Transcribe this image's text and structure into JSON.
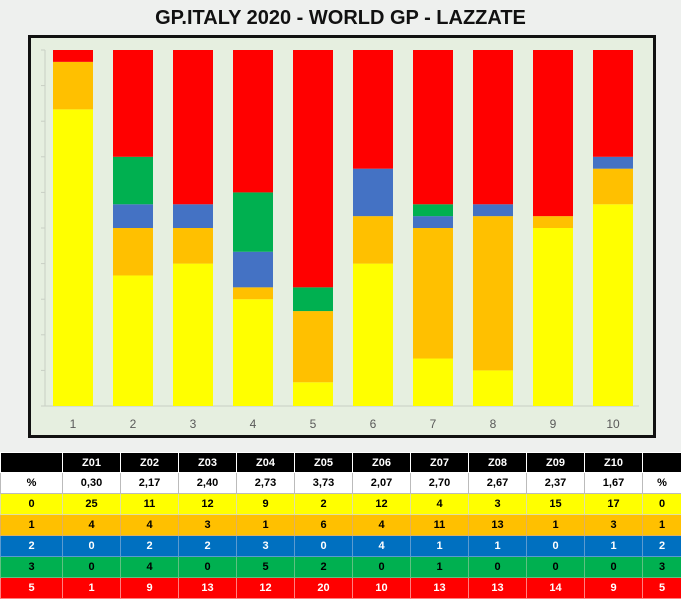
{
  "title": "GP.ITALY 2020 - WORLD GP - LAZZATE",
  "colors": {
    "level0": "#ffff00",
    "level1": "#ffc000",
    "level2": "#4472c4",
    "level3": "#00b050",
    "level5": "#ff0000"
  },
  "chart_data": {
    "type": "bar",
    "stacked": true,
    "normalized": true,
    "categories": [
      "1",
      "2",
      "3",
      "4",
      "5",
      "6",
      "7",
      "8",
      "9",
      "10"
    ],
    "series": [
      {
        "name": "0",
        "values": [
          25,
          11,
          12,
          9,
          2,
          12,
          4,
          3,
          15,
          17
        ]
      },
      {
        "name": "1",
        "values": [
          4,
          4,
          3,
          1,
          6,
          4,
          11,
          13,
          1,
          3
        ]
      },
      {
        "name": "2",
        "values": [
          0,
          2,
          2,
          3,
          0,
          4,
          1,
          1,
          0,
          1
        ]
      },
      {
        "name": "3",
        "values": [
          0,
          4,
          0,
          5,
          2,
          0,
          1,
          0,
          0,
          0
        ]
      },
      {
        "name": "5",
        "values": [
          1,
          9,
          13,
          12,
          20,
          10,
          13,
          13,
          14,
          9
        ]
      }
    ],
    "grid": false,
    "legend": "none"
  },
  "table": {
    "header": [
      "",
      "Z01",
      "Z02",
      "Z03",
      "Z04",
      "Z05",
      "Z06",
      "Z07",
      "Z08",
      "Z09",
      "Z10",
      ""
    ],
    "pct_row": [
      "%",
      "0,30",
      "2,17",
      "2,40",
      "2,73",
      "3,73",
      "2,07",
      "2,70",
      "2,67",
      "2,37",
      "1,67",
      "%"
    ],
    "rows": [
      {
        "level": "0",
        "values": [
          "25",
          "11",
          "12",
          "9",
          "2",
          "12",
          "4",
          "3",
          "15",
          "17"
        ]
      },
      {
        "level": "1",
        "values": [
          "4",
          "4",
          "3",
          "1",
          "6",
          "4",
          "11",
          "13",
          "1",
          "3"
        ]
      },
      {
        "level": "2",
        "values": [
          "0",
          "2",
          "2",
          "3",
          "0",
          "4",
          "1",
          "1",
          "0",
          "1"
        ]
      },
      {
        "level": "3",
        "values": [
          "0",
          "4",
          "0",
          "5",
          "2",
          "0",
          "1",
          "0",
          "0",
          "0"
        ]
      },
      {
        "level": "5",
        "values": [
          "1",
          "9",
          "13",
          "12",
          "20",
          "10",
          "13",
          "13",
          "14",
          "9"
        ]
      }
    ]
  }
}
